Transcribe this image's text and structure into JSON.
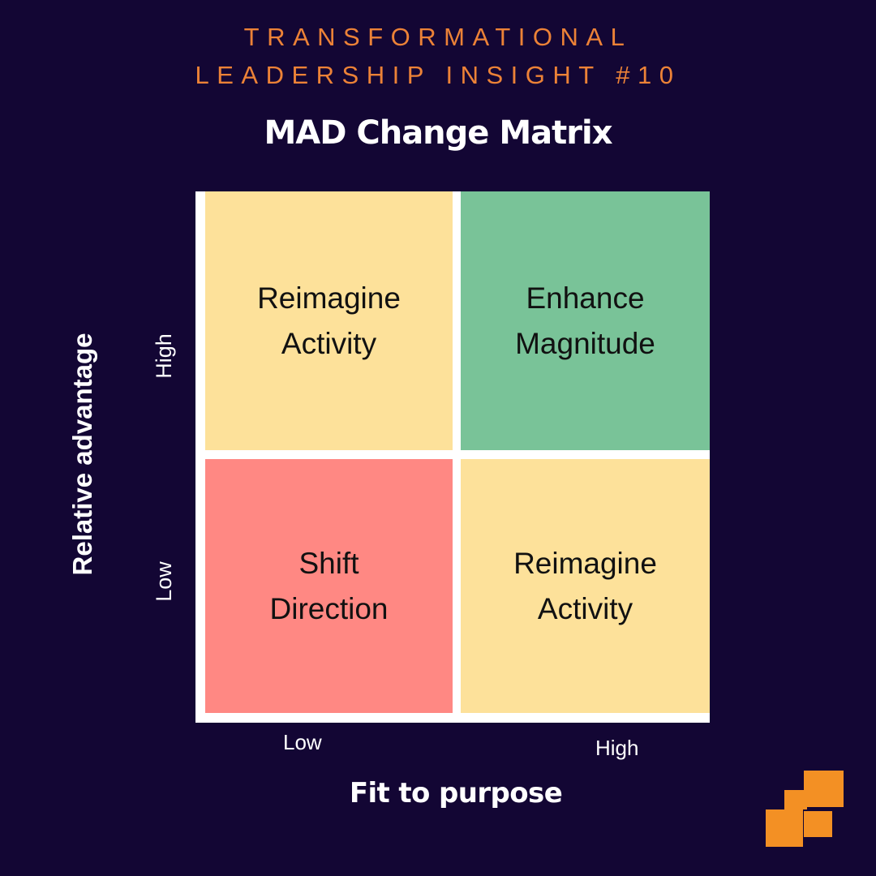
{
  "series_title": {
    "line1": "TRANSFORMATIONAL",
    "line2": "LEADERSHIP INSIGHT #10"
  },
  "matrix_title": "MAD Change Matrix",
  "y_axis": {
    "title": "Relative advantage",
    "high": "High",
    "low": "Low"
  },
  "x_axis": {
    "title": "Fit to purpose",
    "low": "Low",
    "high": "High"
  },
  "quadrants": {
    "top_left": {
      "line1": "Reimagine",
      "line2": "Activity",
      "color": "#fde19a"
    },
    "top_right": {
      "line1": "Enhance",
      "line2": "Magnitude",
      "color": "#79c398"
    },
    "bottom_left": {
      "line1": "Shift",
      "line2": "Direction",
      "color": "#ff8883"
    },
    "bottom_right": {
      "line1": "Reimagine",
      "line2": "Activity",
      "color": "#fde19a"
    }
  },
  "colors": {
    "background": "#130634",
    "accent": "#ec8237",
    "logo": "#f39024"
  },
  "logo_icon": "stacked-squares-logo-icon"
}
